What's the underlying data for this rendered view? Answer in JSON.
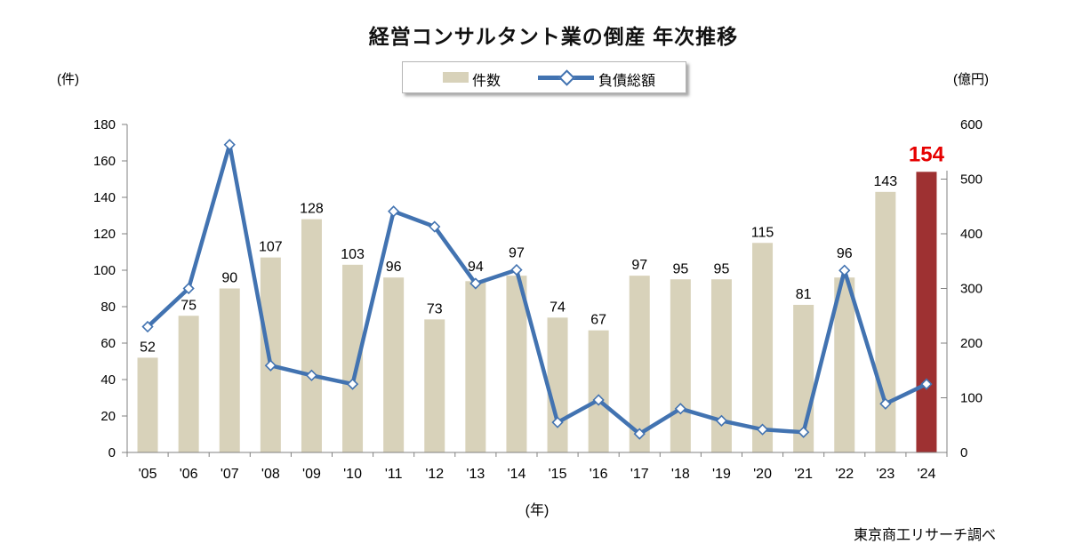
{
  "title": "経営コンサルタント業の倒産 年次推移",
  "legend": {
    "bar_series": "件数",
    "line_series": "負債総額"
  },
  "axes": {
    "left_unit": "(件)",
    "right_unit": "(億円)",
    "x_unit": "(年)"
  },
  "source": "東京商工リサーチ調べ",
  "colors": {
    "bar": "#d8d2ba",
    "bar_highlight": "#9e3132",
    "line": "#4273b1",
    "marker_fill": "#ffffff",
    "value_label": "#000000",
    "highlight_label": "#e60000",
    "axis": "#808080",
    "text": "#000000"
  },
  "chart_data": {
    "type": "bar+line combo",
    "title": "経営コンサルタント業の倒産 年次推移",
    "categories": [
      "'05",
      "'06",
      "'07",
      "'08",
      "'09",
      "'10",
      "'11",
      "'12",
      "'13",
      "'14",
      "'15",
      "'16",
      "'17",
      "'18",
      "'19",
      "'20",
      "'21",
      "'22",
      "'23",
      "'24"
    ],
    "series": [
      {
        "name": "件数",
        "type": "bar",
        "axis": "left",
        "unit": "件",
        "values": [
          52,
          75,
          90,
          107,
          128,
          103,
          96,
          73,
          94,
          97,
          74,
          67,
          97,
          95,
          95,
          115,
          81,
          96,
          143,
          154
        ],
        "highlight_index": 19,
        "data_labels_shown": true
      },
      {
        "name": "負債総額",
        "type": "line",
        "axis": "right",
        "unit": "億円",
        "values": [
          230,
          300,
          563,
          159,
          141,
          125,
          441,
          413,
          309,
          334,
          55,
          96,
          34,
          80,
          58,
          42,
          37,
          333,
          89,
          125
        ],
        "values_estimated_from_pixels": true,
        "data_labels_shown": false
      }
    ],
    "left_axis": {
      "min": 0,
      "max": 180,
      "step": 20,
      "title": "(件)"
    },
    "right_axis": {
      "min": 0,
      "max": 600,
      "step": 100,
      "title": "(億円)"
    },
    "x_axis": {
      "title": "(年)"
    },
    "grid": false,
    "legend_position": "top-center"
  }
}
